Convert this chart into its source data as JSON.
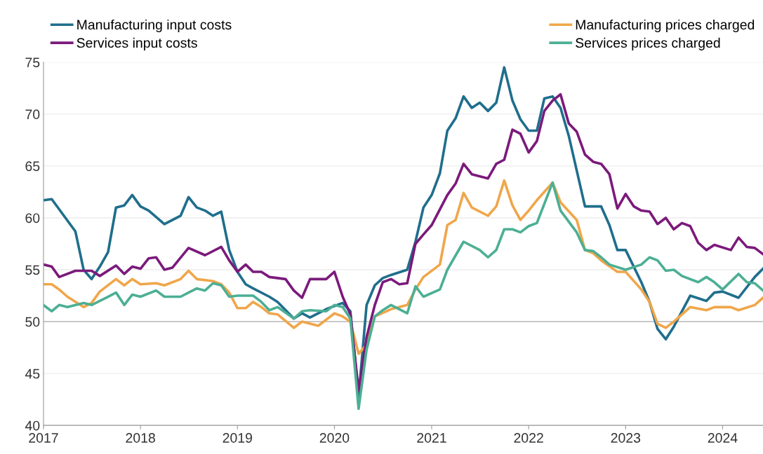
{
  "chart_data": {
    "type": "line",
    "series": [
      {
        "name": "Manufacturing input costs",
        "color": "#1f6e8c",
        "x": [
          "2017-01",
          "2017-02",
          "2017-05",
          "2017-06",
          "2017-07",
          "2017-08",
          "2017-09",
          "2017-10",
          "2017-11",
          "2017-12",
          "2018-01",
          "2018-02",
          "2018-04",
          "2018-06",
          "2018-07",
          "2018-08",
          "2018-09",
          "2018-10",
          "2018-11",
          "2018-12",
          "2019-01",
          "2019-02",
          "2019-03",
          "2019-05",
          "2019-06",
          "2019-08",
          "2019-09",
          "2019-10",
          "2019-12",
          "2020-02",
          "2020-03",
          "2020-04",
          "2020-05",
          "2020-06",
          "2020-07",
          "2020-08",
          "2020-10",
          "2020-11",
          "2020-12",
          "2021-01",
          "2021-02",
          "2021-03",
          "2021-04",
          "2021-05",
          "2021-06",
          "2021-07",
          "2021-08",
          "2021-09",
          "2021-10",
          "2021-11",
          "2021-12",
          "2022-01",
          "2022-02",
          "2022-03",
          "2022-04",
          "2022-05",
          "2022-06",
          "2022-08",
          "2022-10",
          "2022-11",
          "2022-12",
          "2023-01",
          "2023-03",
          "2023-04",
          "2023-05",
          "2023-06",
          "2023-07",
          "2023-09",
          "2023-11",
          "2023-12",
          "2024-01",
          "2024-03",
          "2024-05",
          "2024-06"
        ],
        "values": [
          61.7,
          61.8,
          58.7,
          55.0,
          54.1,
          55.3,
          56.7,
          61.0,
          61.2,
          62.2,
          61.1,
          60.7,
          59.4,
          60.2,
          62.0,
          61.0,
          60.7,
          60.2,
          60.6,
          56.9,
          54.8,
          53.6,
          53.2,
          52.4,
          51.9,
          50.3,
          50.8,
          50.4,
          51.2,
          51.8,
          51.0,
          42.8,
          51.6,
          53.5,
          54.2,
          54.5,
          55.0,
          57.7,
          61.0,
          62.2,
          64.3,
          68.4,
          69.6,
          71.7,
          70.6,
          71.1,
          70.3,
          71.1,
          74.5,
          71.3,
          69.5,
          68.4,
          68.4,
          71.5,
          71.7,
          70.6,
          67.9,
          61.1,
          61.1,
          59.3,
          56.9,
          56.9,
          53.8,
          51.9,
          49.3,
          48.3,
          49.5,
          52.5,
          52.0,
          52.8,
          52.9,
          52.3,
          54.3,
          55.1
        ]
      },
      {
        "name": "Manufacturing prices charged",
        "color": "#f0a64a",
        "x": [
          "2017-01",
          "2017-02",
          "2017-03",
          "2017-04",
          "2017-06",
          "2017-07",
          "2017-08",
          "2017-10",
          "2017-11",
          "2017-12",
          "2018-01",
          "2018-03",
          "2018-04",
          "2018-06",
          "2018-07",
          "2018-08",
          "2018-10",
          "2018-11",
          "2018-12",
          "2019-01",
          "2019-02",
          "2019-03",
          "2019-04",
          "2019-05",
          "2019-06",
          "2019-08",
          "2019-09",
          "2019-11",
          "2020-01",
          "2020-02",
          "2020-03",
          "2020-04",
          "2020-05",
          "2020-06",
          "2020-08",
          "2020-10",
          "2020-11",
          "2020-12",
          "2021-02",
          "2021-03",
          "2021-04",
          "2021-05",
          "2021-06",
          "2021-08",
          "2021-09",
          "2021-10",
          "2021-11",
          "2021-12",
          "2022-01",
          "2022-02",
          "2022-04",
          "2022-05",
          "2022-07",
          "2022-08",
          "2022-09",
          "2022-10",
          "2022-12",
          "2023-01",
          "2023-03",
          "2023-04",
          "2023-05",
          "2023-06",
          "2023-07",
          "2023-09",
          "2023-11",
          "2023-12",
          "2024-02",
          "2024-03",
          "2024-05",
          "2024-06"
        ],
        "values": [
          53.6,
          53.6,
          53.1,
          52.4,
          51.4,
          51.8,
          52.9,
          54.1,
          53.5,
          54.1,
          53.6,
          53.7,
          53.5,
          54.1,
          54.9,
          54.1,
          53.9,
          53.6,
          52.8,
          51.3,
          51.3,
          51.9,
          51.4,
          50.8,
          50.7,
          49.4,
          50.0,
          49.6,
          50.8,
          50.5,
          50.0,
          46.9,
          47.8,
          50.5,
          51.2,
          51.6,
          53.1,
          54.3,
          55.5,
          59.3,
          59.8,
          62.4,
          61.0,
          60.2,
          61.1,
          63.6,
          61.2,
          59.8,
          60.7,
          61.7,
          63.4,
          61.5,
          59.8,
          56.9,
          56.6,
          55.9,
          54.8,
          54.8,
          53.1,
          51.9,
          49.8,
          49.4,
          50.0,
          51.4,
          51.1,
          51.4,
          51.4,
          51.1,
          51.6,
          52.3
        ]
      },
      {
        "name": "Services input costs",
        "color": "#7b1a7b",
        "x": [
          "2017-01",
          "2017-02",
          "2017-03",
          "2017-05",
          "2017-07",
          "2017-08",
          "2017-10",
          "2017-11",
          "2017-12",
          "2018-01",
          "2018-02",
          "2018-03",
          "2018-04",
          "2018-05",
          "2018-07",
          "2018-09",
          "2018-11",
          "2018-12",
          "2019-01",
          "2019-02",
          "2019-03",
          "2019-04",
          "2019-05",
          "2019-07",
          "2019-08",
          "2019-09",
          "2019-10",
          "2019-12",
          "2020-01",
          "2020-02",
          "2020-03",
          "2020-04",
          "2020-05",
          "2020-06",
          "2020-07",
          "2020-08",
          "2020-09",
          "2020-10",
          "2020-11",
          "2020-12",
          "2021-01",
          "2021-03",
          "2021-04",
          "2021-05",
          "2021-06",
          "2021-08",
          "2021-09",
          "2021-10",
          "2021-11",
          "2021-12",
          "2022-01",
          "2022-02",
          "2022-03",
          "2022-04",
          "2022-05",
          "2022-06",
          "2022-07",
          "2022-08",
          "2022-09",
          "2022-10",
          "2022-11",
          "2022-12",
          "2023-01",
          "2023-02",
          "2023-03",
          "2023-04",
          "2023-05",
          "2023-06",
          "2023-07",
          "2023-08",
          "2023-09",
          "2023-10",
          "2023-11",
          "2023-12",
          "2024-02",
          "2024-03",
          "2024-04",
          "2024-05",
          "2024-06"
        ],
        "values": [
          55.5,
          55.3,
          54.3,
          54.9,
          54.9,
          54.4,
          55.4,
          54.6,
          55.3,
          55.1,
          56.1,
          56.2,
          55.0,
          55.2,
          57.1,
          56.4,
          57.2,
          55.9,
          54.8,
          55.5,
          54.8,
          54.8,
          54.3,
          54.1,
          53.0,
          52.3,
          54.1,
          54.1,
          54.8,
          52.4,
          50.7,
          43.3,
          48.5,
          51.6,
          53.8,
          54.1,
          53.6,
          53.7,
          57.5,
          58.4,
          59.3,
          62.2,
          63.3,
          65.2,
          64.2,
          63.8,
          65.2,
          65.6,
          68.5,
          68.1,
          66.3,
          67.4,
          70.3,
          71.3,
          71.9,
          69.1,
          68.3,
          66.1,
          65.4,
          65.2,
          64.2,
          60.9,
          62.3,
          61.1,
          60.7,
          60.6,
          59.4,
          60.0,
          58.9,
          59.5,
          59.2,
          57.6,
          56.9,
          57.4,
          56.9,
          58.1,
          57.2,
          57.1,
          56.5
        ]
      },
      {
        "name": "Services prices charged",
        "color": "#4caf94",
        "x": [
          "2017-01",
          "2017-02",
          "2017-03",
          "2017-04",
          "2017-06",
          "2017-07",
          "2017-09",
          "2017-10",
          "2017-11",
          "2017-12",
          "2018-01",
          "2018-03",
          "2018-04",
          "2018-06",
          "2018-07",
          "2018-08",
          "2018-09",
          "2018-10",
          "2018-11",
          "2018-12",
          "2019-01",
          "2019-03",
          "2019-04",
          "2019-05",
          "2019-06",
          "2019-08",
          "2019-09",
          "2019-10",
          "2019-12",
          "2020-01",
          "2020-02",
          "2020-03",
          "2020-04",
          "2020-05",
          "2020-06",
          "2020-07",
          "2020-08",
          "2020-10",
          "2020-11",
          "2020-12",
          "2021-02",
          "2021-03",
          "2021-05",
          "2021-07",
          "2021-08",
          "2021-09",
          "2021-10",
          "2021-11",
          "2021-12",
          "2022-01",
          "2022-02",
          "2022-04",
          "2022-05",
          "2022-07",
          "2022-08",
          "2022-09",
          "2022-10",
          "2022-11",
          "2023-01",
          "2023-03",
          "2023-04",
          "2023-05",
          "2023-06",
          "2023-07",
          "2023-08",
          "2023-10",
          "2023-11",
          "2023-12",
          "2024-01",
          "2024-03",
          "2024-04",
          "2024-05",
          "2024-06"
        ],
        "values": [
          51.6,
          51.0,
          51.6,
          51.4,
          51.8,
          51.6,
          52.4,
          52.8,
          51.6,
          52.6,
          52.4,
          53.0,
          52.4,
          52.4,
          52.8,
          53.2,
          53.0,
          53.7,
          53.5,
          52.4,
          52.5,
          52.5,
          51.9,
          51.1,
          51.4,
          50.3,
          51.0,
          51.1,
          51.0,
          51.6,
          51.4,
          50.3,
          41.6,
          47.3,
          50.5,
          51.1,
          51.6,
          50.8,
          53.4,
          52.4,
          53.1,
          55.0,
          57.7,
          56.9,
          56.2,
          56.9,
          58.9,
          58.9,
          58.6,
          59.2,
          59.5,
          63.4,
          60.7,
          58.6,
          56.9,
          56.8,
          56.2,
          55.5,
          55.0,
          55.5,
          56.2,
          55.9,
          54.9,
          55.0,
          54.4,
          53.8,
          54.3,
          53.8,
          53.1,
          54.6,
          53.8,
          53.7,
          53.0
        ]
      }
    ],
    "xlim": [
      "2017-01",
      "2024-06"
    ],
    "xticks": [
      {
        "value": "2017-01",
        "label": "2017"
      },
      {
        "value": "2018-01",
        "label": "2018"
      },
      {
        "value": "2019-01",
        "label": "2019"
      },
      {
        "value": "2020-01",
        "label": "2020"
      },
      {
        "value": "2021-01",
        "label": "2021"
      },
      {
        "value": "2022-01",
        "label": "2022"
      },
      {
        "value": "2023-01",
        "label": "2023"
      },
      {
        "value": "2024-01",
        "label": "2024"
      }
    ],
    "ylim": [
      40,
      75
    ],
    "yticks": [
      40,
      45,
      50,
      55,
      60,
      65,
      70,
      75
    ],
    "ref_lines": [
      {
        "axis": "y",
        "value": 50,
        "color": "#c8c8c8"
      }
    ],
    "grid": "y",
    "legend": "top",
    "marker": "none",
    "line_style": "solid"
  }
}
